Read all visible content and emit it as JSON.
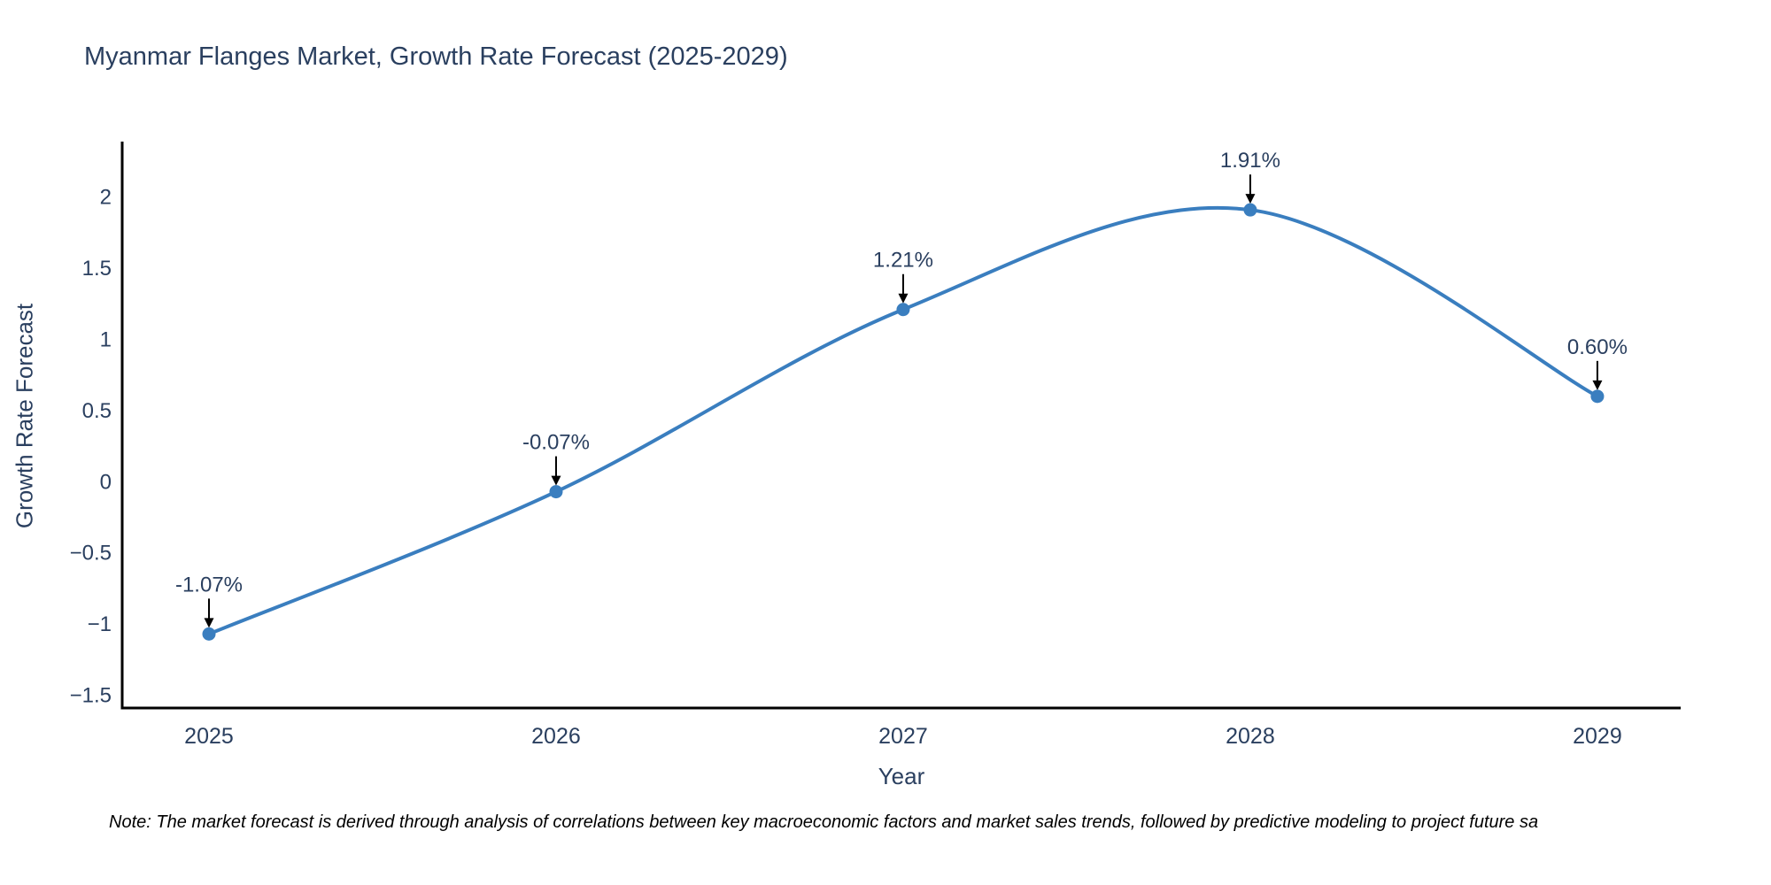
{
  "page": {
    "note": "Note: The market forecast is derived through analysis of correlations between key macroeconomic factors and market sales trends, followed by predictive modeling to project future sa"
  },
  "chart_data": {
    "type": "line",
    "title": "Myanmar Flanges Market, Growth Rate Forecast (2025-2029)",
    "xlabel": "Year",
    "ylabel": "Growth Rate Forecast",
    "categories": [
      2025,
      2026,
      2027,
      2028,
      2029
    ],
    "series": [
      {
        "name": "Growth Rate Forecast",
        "values": [
          -1.07,
          -0.07,
          1.21,
          1.91,
          0.6
        ]
      }
    ],
    "point_labels": [
      "-1.07%",
      "-0.07%",
      "1.21%",
      "1.91%",
      "0.60%"
    ],
    "x_tick_labels": [
      "2025",
      "2026",
      "2027",
      "2028",
      "2029"
    ],
    "y_ticks": [
      2,
      1.5,
      1,
      0.5,
      0,
      -0.5,
      -1,
      -1.5
    ],
    "y_tick_labels": [
      "2",
      "1.5",
      "1",
      "0.5",
      "0",
      "−0.5",
      "−1",
      "−1.5"
    ],
    "xlim": [
      2024.75,
      2029.24
    ],
    "ylim": [
      -1.59,
      2.39
    ],
    "grid": false,
    "legend": "none",
    "line_shape": "spline",
    "annotation_arrows": "down",
    "colors": {
      "line": "#3a7ebf",
      "marker": "#3a7ebf",
      "arrow": "#000000",
      "text": "#2a3f5f",
      "axis": "#000000",
      "background": "#ffffff"
    }
  }
}
